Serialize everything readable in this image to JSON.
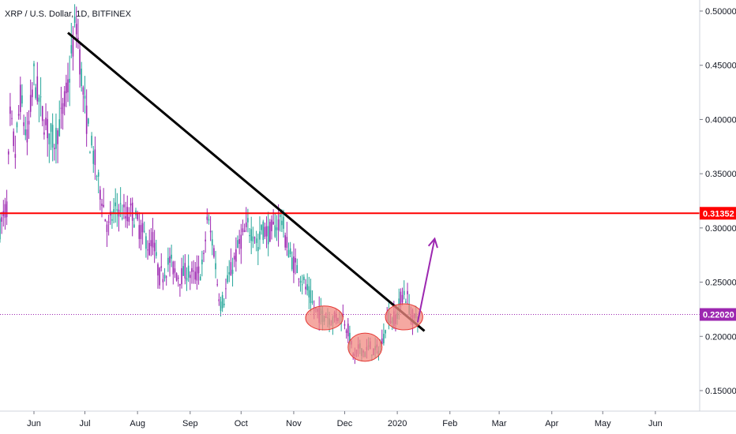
{
  "chart_data": {
    "type": "candlestick",
    "title": "XRP / U.S. Dollar, 1D, BITFINEX",
    "y_range": [
      0.12,
      0.51
    ],
    "x_range_days": [
      0,
      320
    ],
    "y_ticks": [
      "0.50000",
      "0.45000",
      "0.40000",
      "0.35000",
      "0.30000",
      "0.25000",
      "0.20000",
      "0.15000"
    ],
    "y_tick_values": [
      0.5,
      0.45,
      0.4,
      0.35,
      0.3,
      0.25,
      0.2,
      0.15
    ],
    "x_ticks": [
      {
        "label": "Jun",
        "day": 20
      },
      {
        "label": "Jul",
        "day": 50
      },
      {
        "label": "Aug",
        "day": 81
      },
      {
        "label": "Sep",
        "day": 112
      },
      {
        "label": "Oct",
        "day": 142
      },
      {
        "label": "Nov",
        "day": 173
      },
      {
        "label": "Dec",
        "day": 203
      },
      {
        "label": "2020",
        "day": 234
      },
      {
        "label": "Feb",
        "day": 265
      },
      {
        "label": "Mar",
        "day": 294
      },
      {
        "label": "Apr",
        "day": 325
      },
      {
        "label": "May",
        "day": 355
      },
      {
        "label": "Jun",
        "day": 386
      }
    ],
    "price_path": [
      [
        0,
        0.3
      ],
      [
        4,
        0.32
      ],
      [
        6,
        0.4
      ],
      [
        9,
        0.37
      ],
      [
        12,
        0.42
      ],
      [
        16,
        0.38
      ],
      [
        20,
        0.44
      ],
      [
        24,
        0.41
      ],
      [
        28,
        0.39
      ],
      [
        32,
        0.38
      ],
      [
        36,
        0.4
      ],
      [
        40,
        0.43
      ],
      [
        43,
        0.47
      ],
      [
        45,
        0.49
      ],
      [
        48,
        0.44
      ],
      [
        50,
        0.41
      ],
      [
        53,
        0.38
      ],
      [
        56,
        0.36
      ],
      [
        58,
        0.34
      ],
      [
        60,
        0.33
      ],
      [
        62,
        0.31
      ],
      [
        64,
        0.3
      ],
      [
        66,
        0.31
      ],
      [
        70,
        0.32
      ],
      [
        74,
        0.31
      ],
      [
        78,
        0.315
      ],
      [
        82,
        0.3
      ],
      [
        86,
        0.29
      ],
      [
        88,
        0.28
      ],
      [
        90,
        0.29
      ],
      [
        92,
        0.27
      ],
      [
        94,
        0.255
      ],
      [
        97,
        0.26
      ],
      [
        100,
        0.27
      ],
      [
        103,
        0.26
      ],
      [
        106,
        0.255
      ],
      [
        110,
        0.26
      ],
      [
        114,
        0.255
      ],
      [
        118,
        0.26
      ],
      [
        120,
        0.27
      ],
      [
        122,
        0.31
      ],
      [
        124,
        0.295
      ],
      [
        126,
        0.28
      ],
      [
        128,
        0.25
      ],
      [
        130,
        0.23
      ],
      [
        132,
        0.235
      ],
      [
        134,
        0.25
      ],
      [
        138,
        0.27
      ],
      [
        142,
        0.29
      ],
      [
        146,
        0.3
      ],
      [
        150,
        0.295
      ],
      [
        152,
        0.28
      ],
      [
        154,
        0.3
      ],
      [
        158,
        0.295
      ],
      [
        162,
        0.3
      ],
      [
        166,
        0.31
      ],
      [
        168,
        0.29
      ],
      [
        170,
        0.28
      ],
      [
        172,
        0.27
      ],
      [
        176,
        0.26
      ],
      [
        180,
        0.245
      ],
      [
        183,
        0.235
      ],
      [
        185,
        0.225
      ],
      [
        188,
        0.22
      ],
      [
        192,
        0.22
      ],
      [
        196,
        0.215
      ],
      [
        200,
        0.22
      ],
      [
        203,
        0.215
      ],
      [
        205,
        0.205
      ],
      [
        207,
        0.19
      ],
      [
        209,
        0.18
      ],
      [
        212,
        0.19
      ],
      [
        215,
        0.185
      ],
      [
        218,
        0.19
      ],
      [
        221,
        0.185
      ],
      [
        224,
        0.19
      ],
      [
        226,
        0.2
      ],
      [
        228,
        0.22
      ],
      [
        231,
        0.215
      ],
      [
        234,
        0.22
      ],
      [
        236,
        0.235
      ],
      [
        238,
        0.24
      ],
      [
        240,
        0.235
      ],
      [
        242,
        0.22
      ],
      [
        244,
        0.215
      ],
      [
        246,
        0.22
      ]
    ],
    "price_lines": [
      {
        "value": 0.31352,
        "label": "0.31352",
        "color": "#ff0000",
        "style": "solid"
      },
      {
        "value": 0.2202,
        "label": "0.22020",
        "color": "#9c27b0",
        "style": "dotted"
      }
    ],
    "trendline": {
      "from": [
        40,
        0.48
      ],
      "to": [
        250,
        0.205
      ],
      "color": "#000000"
    },
    "ellipses": [
      {
        "center": [
          191,
          0.217
        ],
        "rx_days": 11,
        "ry": 0.011
      },
      {
        "center": [
          215,
          0.19
        ],
        "rx_days": 10,
        "ry": 0.013
      },
      {
        "center": [
          238,
          0.218
        ],
        "rx_days": 11,
        "ry": 0.012
      }
    ],
    "arrow": {
      "from": [
        246,
        0.213
      ],
      "to": [
        256,
        0.29
      ],
      "color": "#9c27b0"
    },
    "colors": {
      "up": "#26a69a",
      "down": "#9c27b0",
      "ellipse_fill": "#f28b82",
      "ellipse_stroke": "#e53935"
    }
  }
}
